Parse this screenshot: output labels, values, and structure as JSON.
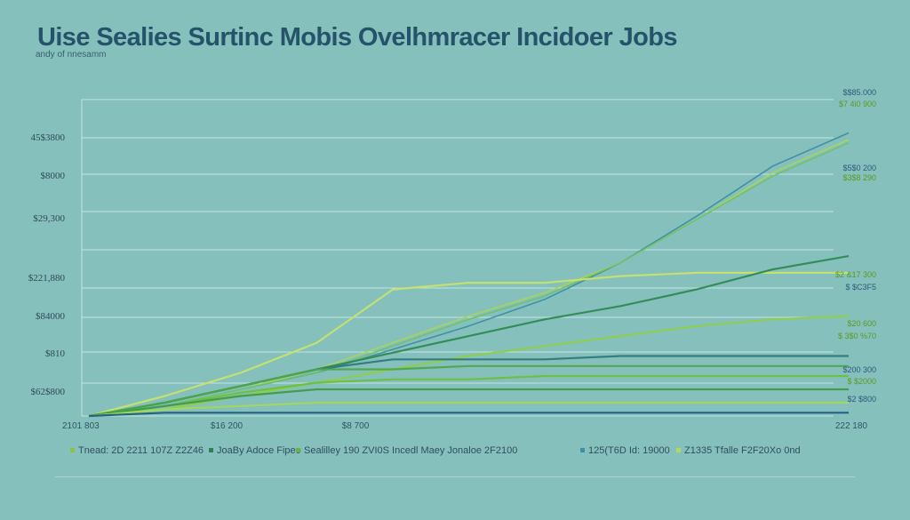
{
  "chart_data": {
    "type": "line",
    "title": "Uise Sealies Surtinc Mobis Ovelhmracer Incidoer Jobs",
    "subtitle": "andy of nnesamm",
    "y_ticks": [
      "45$3800",
      "$8000",
      "$29,300",
      "$221,880",
      "$84000",
      "$810",
      "$62$800"
    ],
    "x_tick_left": "2101 803",
    "x_tick_mid": "$16 200",
    "x_tick_mid2": "$8 700",
    "x_tick_right": "222 180",
    "legend": [
      {
        "label": "Tnead: 2D 2211 107Z Z2Z46",
        "color": "#8fbf45"
      },
      {
        "label": "JoaBy Adoce Fipeo",
        "color": "#2f7f52"
      },
      {
        "label": "Sealilley 190 ZVI0S Incedl Maey Jonaloe 2F2100",
        "color": "#6ab04c"
      },
      {
        "label": "125(T6D Id: 19000",
        "color": "#3f8fa8"
      },
      {
        "label": "Z1335 Tfalle F2F20Xo 0nd",
        "color": "#b4d85a"
      }
    ],
    "end_labels": [
      {
        "text": "$$85.000",
        "color": "#2e5a78"
      },
      {
        "text": "$7 4i0 900",
        "color": "#5a9a20"
      },
      {
        "text": "$5$0 200",
        "color": "#2e5a78"
      },
      {
        "text": "$3$8 290",
        "color": "#5a9a20"
      },
      {
        "text": "$2 &17 300",
        "color": "#5a9a20"
      },
      {
        "text": "$ $C3F5",
        "color": "#2e5a78"
      },
      {
        "text": "$20 600",
        "color": "#5a9a20"
      },
      {
        "text": "$ 3$0 %70",
        "color": "#5a9a20"
      },
      {
        "text": "$200 300",
        "color": "#2e5a78"
      },
      {
        "text": "$ $2000",
        "color": "#5a9a20"
      },
      {
        "text": "$2 $800",
        "color": "#2e5a78"
      }
    ],
    "series": [
      {
        "color": "#3d8fa3",
        "values": [
          0,
          3,
          8,
          13,
          20,
          27,
          35,
          46,
          60,
          75,
          85
        ]
      },
      {
        "color": "#a9d45a",
        "values": [
          0,
          3,
          8,
          14,
          22,
          30,
          37,
          46,
          59,
          73,
          83
        ]
      },
      {
        "color": "#6fc06a",
        "values": [
          0,
          3,
          8,
          13,
          21,
          29,
          36,
          46,
          59,
          72,
          82
        ]
      },
      {
        "color": "#c6e36b",
        "values": [
          0,
          6,
          13,
          22,
          38,
          40,
          40,
          42,
          43,
          43,
          43
        ]
      },
      {
        "color": "#2f8a52",
        "values": [
          0,
          4,
          9,
          14,
          19,
          24,
          29,
          33,
          38,
          44,
          48
        ]
      },
      {
        "color": "#8dcf4a",
        "values": [
          0,
          2,
          6,
          10,
          14,
          18,
          21,
          24,
          27,
          29,
          30
        ]
      },
      {
        "color": "#2e7a7a",
        "values": [
          0,
          4,
          9,
          14,
          17,
          17,
          17,
          18,
          18,
          18,
          18
        ]
      },
      {
        "color": "#4fa64a",
        "values": [
          0,
          4,
          9,
          14,
          14,
          15,
          15,
          15,
          15,
          15,
          15
        ]
      },
      {
        "color": "#6cbf3f",
        "values": [
          0,
          3,
          7,
          10,
          11,
          11,
          12,
          12,
          12,
          12,
          12
        ]
      },
      {
        "color": "#3f9a4a",
        "values": [
          0,
          3,
          6,
          8,
          8,
          8,
          8,
          8,
          8,
          8,
          8
        ]
      },
      {
        "color": "#a2d85a",
        "values": [
          0,
          2,
          3,
          4,
          4,
          4,
          4,
          4,
          4,
          4,
          4
        ]
      },
      {
        "color": "#1f5e82",
        "values": [
          0,
          1,
          1,
          1,
          1,
          1,
          1,
          1,
          1,
          1,
          1
        ]
      }
    ],
    "grid": true,
    "ylim": [
      0,
      95
    ]
  }
}
